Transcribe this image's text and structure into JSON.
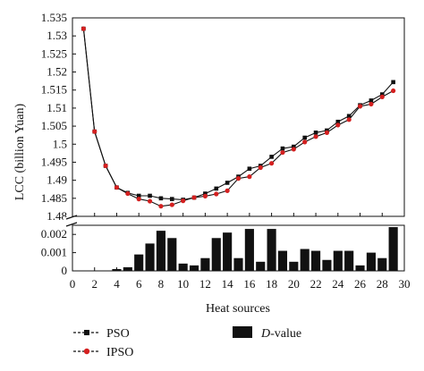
{
  "chart_data": {
    "type": "line",
    "xlabel": "Heat sources",
    "ylabel": "LCC (billion Yuan)",
    "x": [
      1,
      2,
      3,
      4,
      5,
      6,
      7,
      8,
      9,
      10,
      11,
      12,
      13,
      14,
      15,
      16,
      17,
      18,
      19,
      20,
      21,
      22,
      23,
      24,
      25,
      26,
      27,
      28,
      29
    ],
    "upper_ylim": [
      1.48,
      1.535
    ],
    "upper_yticks": [
      "1.48",
      "1.485",
      "1.49",
      "1.495",
      "1.5",
      "1.505",
      "1.51",
      "1.515",
      "1.52",
      "1.525",
      "1.53",
      "1.535"
    ],
    "lower_ylim": [
      0,
      0.0025
    ],
    "lower_yticks": [
      "0",
      "0.001",
      "0.002"
    ],
    "xlim": [
      0,
      30
    ],
    "xticks": [
      "0",
      "2",
      "4",
      "6",
      "8",
      "10",
      "12",
      "14",
      "16",
      "18",
      "20",
      "22",
      "24",
      "26",
      "28",
      "30"
    ],
    "series": [
      {
        "name": "PSO",
        "color": "#111111",
        "marker": "square",
        "values": [
          1.532,
          1.5035,
          1.494,
          1.488,
          1.4865,
          1.4857,
          1.4857,
          1.485,
          1.4848,
          1.4846,
          1.4852,
          1.4863,
          1.4877,
          1.4893,
          1.491,
          1.4932,
          1.494,
          1.4965,
          1.4988,
          1.4993,
          1.5018,
          1.5032,
          1.5038,
          1.5062,
          1.5078,
          1.5108,
          1.5121,
          1.5138,
          1.5172
        ]
      },
      {
        "name": "IPSO",
        "color": "#d42020",
        "marker": "circle",
        "values": [
          1.532,
          1.5035,
          1.494,
          1.488,
          1.4863,
          1.4848,
          1.4842,
          1.4828,
          1.4832,
          1.4843,
          1.4852,
          1.4856,
          1.4862,
          1.4871,
          1.4905,
          1.491,
          1.4935,
          1.4947,
          1.4977,
          1.4986,
          1.5006,
          1.5021,
          1.5032,
          1.5053,
          1.5068,
          1.5105,
          1.5111,
          1.5131,
          1.5148
        ]
      }
    ],
    "bars": {
      "name": "D-value",
      "color": "#111111",
      "values": [
        0,
        0,
        0,
        0.0001,
        0.0002,
        0.0009,
        0.0015,
        0.0022,
        0.0018,
        0.0004,
        0.0003,
        0.0007,
        0.0018,
        0.0021,
        0.0007,
        0.0023,
        0.0005,
        0.0023,
        0.0011,
        0.0005,
        0.0012,
        0.0011,
        0.0006,
        0.0011,
        0.0011,
        0.0003,
        0.001,
        0.0007,
        0.0024
      ]
    },
    "legend": {
      "items": [
        {
          "label": "PSO",
          "style": "line-square"
        },
        {
          "label": "IPSO",
          "style": "line-circle"
        },
        {
          "label": "-value",
          "prefix_italic": "D",
          "style": "bar"
        }
      ],
      "placement": "bottom"
    }
  }
}
